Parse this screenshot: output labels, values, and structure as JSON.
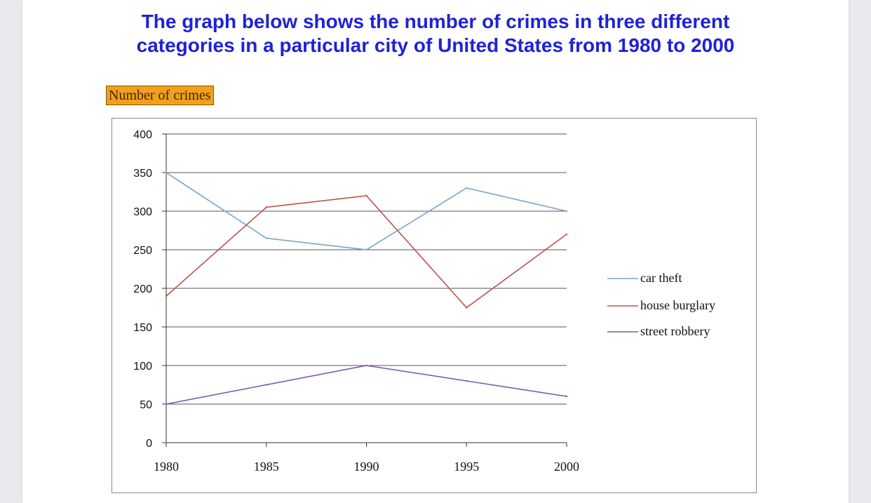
{
  "heading": {
    "line1": "The graph below shows the number of crimes in three different",
    "line2": "categories in a particular city of United States from 1980 to 2000"
  },
  "colors": {
    "heading": "#1f22d6",
    "car_theft": "#7aa3c9",
    "house_burglary": "#c0504d",
    "street_robbery": "#7c5aa6",
    "tag_background": "#f2a01b"
  },
  "chart_data": {
    "type": "line",
    "ylabel": "Number of crimes",
    "xlabel": "",
    "x": [
      1980,
      1985,
      1990,
      1995,
      2000
    ],
    "ylim": [
      0,
      400
    ],
    "y_ticks": [
      0,
      50,
      100,
      150,
      200,
      250,
      300,
      350,
      400
    ],
    "grid": "horizontal",
    "legend": "right",
    "series": [
      {
        "name": "car theft",
        "values": [
          350,
          265,
          250,
          330,
          300
        ]
      },
      {
        "name": "house burglary",
        "values": [
          190,
          305,
          320,
          175,
          270
        ]
      },
      {
        "name": "street robbery",
        "values": [
          50,
          75,
          100,
          80,
          60
        ]
      }
    ]
  }
}
